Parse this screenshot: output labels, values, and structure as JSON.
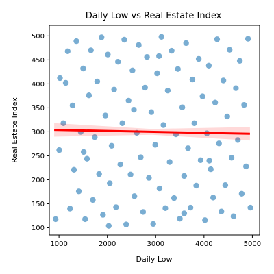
{
  "chart_data": {
    "type": "scatter",
    "title": "Daily Low vs Real Estate Index",
    "xlabel": "Daily Low",
    "ylabel": "Real Estate Index",
    "xlim": [
      800,
      5150
    ],
    "ylim": [
      85,
      522
    ],
    "x_ticks": [
      1000,
      2000,
      3000,
      4000,
      5000
    ],
    "y_ticks": [
      100,
      150,
      200,
      250,
      300,
      350,
      400,
      450,
      500
    ],
    "grid": false,
    "point_color": "#1f77b4",
    "point_opacity": 0.6,
    "series": [
      {
        "values": [
          [
            930,
            118
          ],
          [
            1005,
            262
          ],
          [
            1090,
            318
          ],
          [
            1140,
            402
          ],
          [
            1180,
            468
          ],
          [
            1230,
            140
          ],
          [
            1280,
            355
          ],
          [
            1310,
            221
          ],
          [
            1360,
            489
          ],
          [
            1410,
            176
          ],
          [
            1450,
            300
          ],
          [
            1500,
            432
          ],
          [
            1540,
            118
          ],
          [
            1580,
            244
          ],
          [
            1620,
            376
          ],
          [
            1660,
            470
          ],
          [
            1700,
            158
          ],
          [
            1740,
            289
          ],
          [
            1790,
            405
          ],
          [
            1830,
            212
          ],
          [
            1880,
            497
          ],
          [
            1910,
            127
          ],
          [
            1960,
            334
          ],
          [
            2010,
            461
          ],
          [
            2050,
            193
          ],
          [
            2090,
            271
          ],
          [
            2140,
            388
          ],
          [
            2180,
            143
          ],
          [
            2220,
            446
          ],
          [
            2270,
            232
          ],
          [
            2310,
            318
          ],
          [
            2350,
            492
          ],
          [
            2390,
            107
          ],
          [
            2440,
            365
          ],
          [
            2480,
            211
          ],
          [
            2520,
            428
          ],
          [
            2560,
            166
          ],
          [
            2610,
            298
          ],
          [
            2650,
            481
          ],
          [
            2690,
            247
          ],
          [
            2740,
            133
          ],
          [
            2780,
            392
          ],
          [
            2820,
            456
          ],
          [
            2860,
            204
          ],
          [
            2910,
            341
          ],
          [
            2950,
            108
          ],
          [
            2990,
            273
          ],
          [
            3030,
            422
          ],
          [
            3080,
            182
          ],
          [
            3120,
            498
          ],
          [
            3160,
            314
          ],
          [
            3200,
            141
          ],
          [
            3250,
            386
          ],
          [
            3290,
            237
          ],
          [
            3330,
            469
          ],
          [
            3380,
            162
          ],
          [
            3420,
            295
          ],
          [
            3460,
            431
          ],
          [
            3500,
            119
          ],
          [
            3550,
            351
          ],
          [
            3590,
            208
          ],
          [
            3630,
            485
          ],
          [
            3670,
            266
          ],
          [
            3720,
            142
          ],
          [
            3760,
            409
          ],
          [
            3800,
            318
          ],
          [
            3840,
            188
          ],
          [
            3890,
            452
          ],
          [
            3930,
            241
          ],
          [
            3970,
            374
          ],
          [
            4020,
            116
          ],
          [
            4060,
            297
          ],
          [
            4100,
            438
          ],
          [
            4140,
            222
          ],
          [
            4190,
            163
          ],
          [
            4230,
            361
          ],
          [
            4270,
            493
          ],
          [
            4310,
            276
          ],
          [
            4360,
            134
          ],
          [
            4400,
            407
          ],
          [
            4440,
            189
          ],
          [
            4480,
            332
          ],
          [
            4530,
            471
          ],
          [
            4570,
            246
          ],
          [
            4610,
            124
          ],
          [
            4660,
            391
          ],
          [
            4700,
            283
          ],
          [
            4740,
            448
          ],
          [
            4780,
            171
          ],
          [
            4830,
            356
          ],
          [
            4870,
            228
          ],
          [
            4910,
            494
          ],
          [
            4960,
            142
          ],
          [
            1020,
            412
          ],
          [
            1510,
            258
          ],
          [
            2030,
            104
          ],
          [
            2550,
            346
          ],
          [
            3070,
            458
          ],
          [
            3590,
            130
          ],
          [
            4110,
            240
          ]
        ]
      }
    ],
    "trendline": {
      "color": "#ff0000",
      "x": [
        900,
        4950
      ],
      "y": [
        304,
        296
      ]
    }
  }
}
